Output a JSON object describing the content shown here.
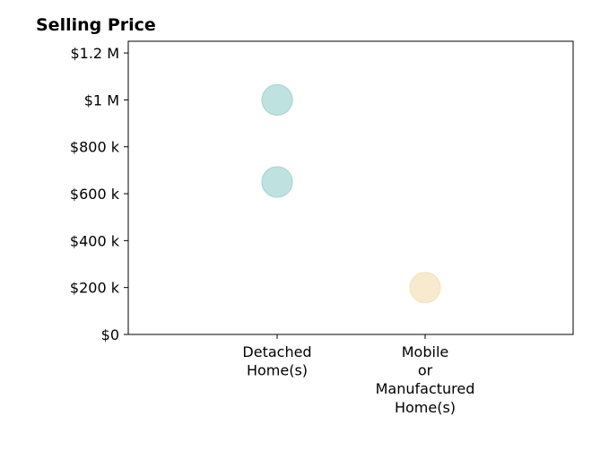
{
  "chart_data": {
    "type": "scatter",
    "title": "Selling Price",
    "xlabel": "",
    "ylabel": "",
    "categories": [
      [
        "Detached",
        "Home(s)"
      ],
      [
        "Mobile",
        "or",
        "Manufactured",
        "Home(s)"
      ]
    ],
    "y_ticks": [
      {
        "value": 0,
        "label": "$0"
      },
      {
        "value": 200000,
        "label": "$200 k"
      },
      {
        "value": 400000,
        "label": "$400 k"
      },
      {
        "value": 600000,
        "label": "$600 k"
      },
      {
        "value": 800000,
        "label": "$800 k"
      },
      {
        "value": 1000000,
        "label": "$1 M"
      },
      {
        "value": 1200000,
        "label": "$1.2 M"
      }
    ],
    "ylim": [
      0,
      1250000
    ],
    "grid": false,
    "points": [
      {
        "category": 0,
        "y": 1000000,
        "color": "#a8d8d4"
      },
      {
        "category": 0,
        "y": 650000,
        "color": "#a8d8d4"
      },
      {
        "category": 1,
        "y": 200000,
        "color": "#f5e3bd"
      }
    ]
  }
}
